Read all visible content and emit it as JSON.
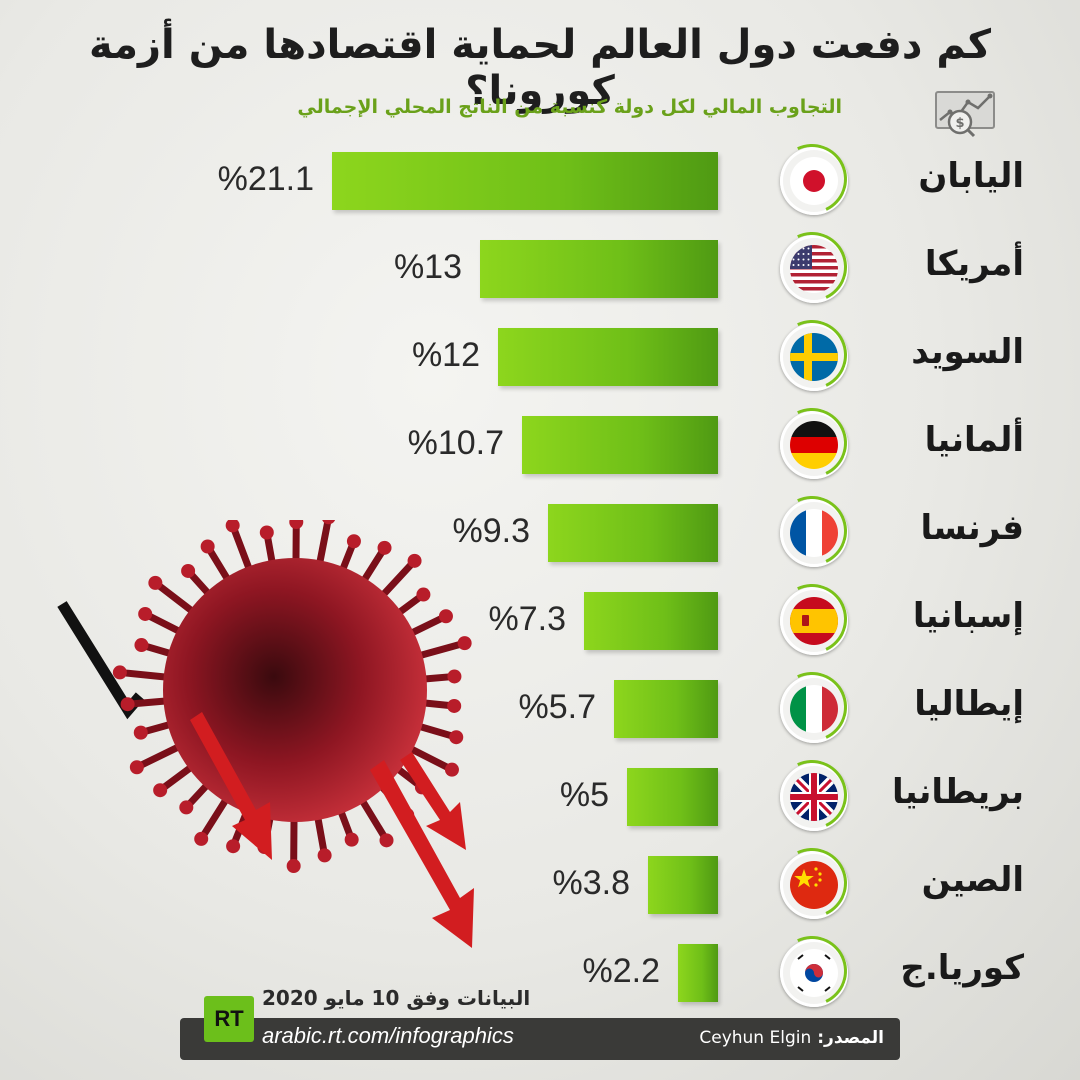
{
  "title": "كم دفعت دول العالم لحماية اقتصادها من أزمة كورونا؟",
  "subtitle": "التجاوب المالي لكل دولة كنسبة من الناتج المحلي الإجمالي",
  "icons": {
    "header": "financial-chart-icon",
    "illustration": "virus-icon"
  },
  "colors": {
    "bar": "#7ac21a",
    "subtitle": "#6aa11a",
    "footer": "#3a3a38"
  },
  "chart_data": {
    "type": "bar",
    "orientation": "horizontal",
    "categories": [
      "اليابان",
      "أمريكا",
      "السويد",
      "ألمانيا",
      "فرنسا",
      "إسبانيا",
      "إيطاليا",
      "بريطانيا",
      "الصين",
      "كوريا.ج"
    ],
    "values": [
      21.1,
      13,
      12,
      10.7,
      9.3,
      7.3,
      5.7,
      5,
      3.8,
      2.2
    ],
    "value_labels": [
      "%21.1",
      "%13",
      "%12",
      "%10.7",
      "%9.3",
      "%7.3",
      "%5.7",
      "%5",
      "%3.8",
      "%2.2"
    ],
    "flags": [
      "japan-flag-icon",
      "usa-flag-icon",
      "sweden-flag-icon",
      "germany-flag-icon",
      "france-flag-icon",
      "spain-flag-icon",
      "italy-flag-icon",
      "uk-flag-icon",
      "china-flag-icon",
      "south-korea-flag-icon"
    ],
    "title": "كم دفعت دول العالم لحماية اقتصادها من أزمة كورونا؟",
    "xlim": [
      0,
      21.1
    ]
  },
  "footer": {
    "date_note": "البيانات وفق 10 مايو 2020",
    "logo_text": "RT",
    "url": "arabic.rt.com/infographics",
    "source_label": "المصدر:",
    "source_value": "Ceyhun Elgin"
  }
}
